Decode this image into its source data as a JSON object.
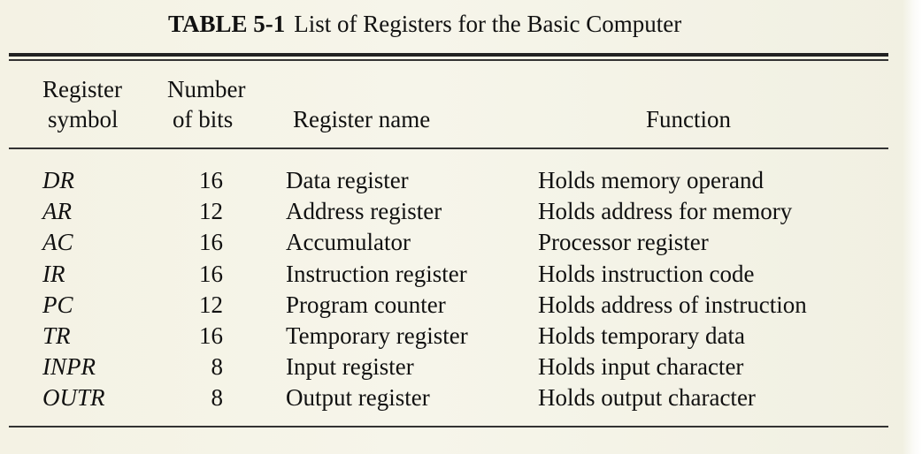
{
  "caption": {
    "label": "TABLE 5-1",
    "text": "List of Registers for the Basic Computer"
  },
  "headers": {
    "symbol": [
      "Register",
      "symbol"
    ],
    "bits": [
      "Number",
      "of bits"
    ],
    "name": "Register name",
    "function": "Function"
  },
  "rows": [
    {
      "symbol": "DR",
      "bits": "16",
      "name": "Data register",
      "function": "Holds memory operand"
    },
    {
      "symbol": "AR",
      "bits": "12",
      "name": "Address register",
      "function": "Holds address for memory"
    },
    {
      "symbol": "AC",
      "bits": "16",
      "name": "Accumulator",
      "function": "Processor register"
    },
    {
      "symbol": "IR",
      "bits": "16",
      "name": "Instruction register",
      "function": "Holds instruction code"
    },
    {
      "symbol": "PC",
      "bits": "12",
      "name": "Program counter",
      "function": "Holds address of instruction"
    },
    {
      "symbol": "TR",
      "bits": "16",
      "name": "Temporary register",
      "function": "Holds temporary data"
    },
    {
      "symbol": "INPR",
      "bits": "8",
      "name": "Input register",
      "function": "Holds input character"
    },
    {
      "symbol": "OUTR",
      "bits": "8",
      "name": "Output register",
      "function": "Holds output character"
    }
  ]
}
